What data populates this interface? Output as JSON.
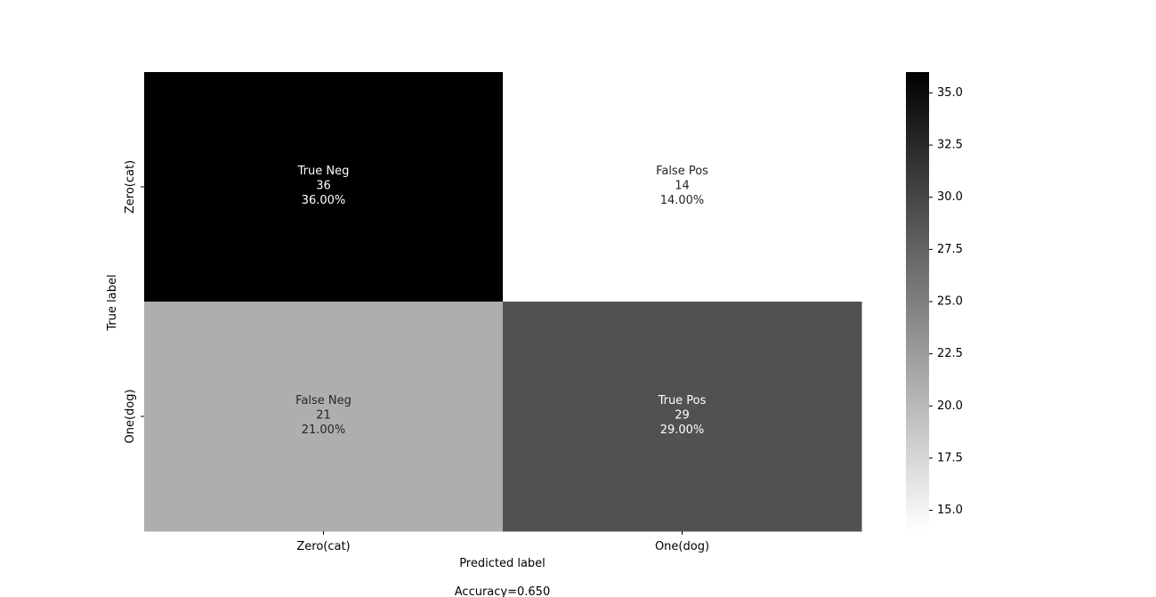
{
  "chart_data": {
    "type": "heatmap",
    "title": "",
    "xlabel": "Predicted label",
    "ylabel": "True label",
    "x_categories": [
      "Zero(cat)",
      "One(dog)"
    ],
    "y_categories": [
      "Zero(cat)",
      "One(dog)"
    ],
    "cells": [
      [
        {
          "name": "True Neg",
          "value": 36,
          "percent": "36.00%"
        },
        {
          "name": "False Pos",
          "value": 14,
          "percent": "14.00%"
        }
      ],
      [
        {
          "name": "False Neg",
          "value": 21,
          "percent": "21.00%"
        },
        {
          "name": "True Pos",
          "value": 29,
          "percent": "29.00%"
        }
      ]
    ],
    "colormap": "Greys",
    "vmin": 14,
    "vmax": 36,
    "colorbar": {
      "ticks": [
        15.0,
        17.5,
        20.0,
        22.5,
        25.0,
        27.5,
        30.0,
        32.5,
        35.0
      ],
      "tick_labels": [
        "15.0",
        "17.5",
        "20.0",
        "22.5",
        "25.0",
        "27.5",
        "30.0",
        "32.5",
        "35.0"
      ]
    },
    "annotation": "Accuracy=0.650"
  }
}
